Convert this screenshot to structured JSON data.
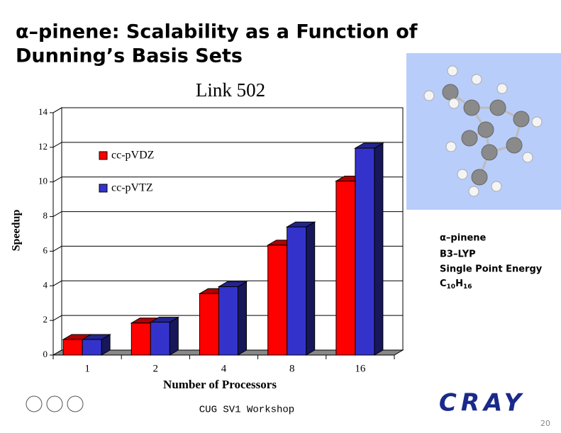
{
  "slide": {
    "title_lines": [
      "α–pinene: Scalability as a Function of",
      "Dunning’s Basis Sets"
    ],
    "side_text": [
      "α–pinene",
      "B3–LYP",
      "Single Point Energy"
    ],
    "formula": [
      "C",
      "10",
      "H",
      "16"
    ],
    "footer": "CUG SV1 Workshop",
    "page_number": "20",
    "logo": "CRAY"
  },
  "chart_data": {
    "type": "bar3d",
    "title": "Link 502",
    "categories": [
      "1",
      "2",
      "4",
      "8",
      "16"
    ],
    "series": [
      {
        "name": "cc-pVDZ",
        "color": "#ff0000",
        "values": [
          0.9,
          1.85,
          3.55,
          6.35,
          10.05
        ]
      },
      {
        "name": "cc-pVTZ",
        "color": "#3333cc",
        "values": [
          0.9,
          1.9,
          3.95,
          7.4,
          11.95
        ]
      }
    ],
    "xlabel": "Number of Processors",
    "ylabel": "Speedup",
    "ylim": [
      0,
      14
    ],
    "yticks": [
      0,
      2,
      4,
      6,
      8,
      10,
      12,
      14
    ],
    "grid": true
  }
}
